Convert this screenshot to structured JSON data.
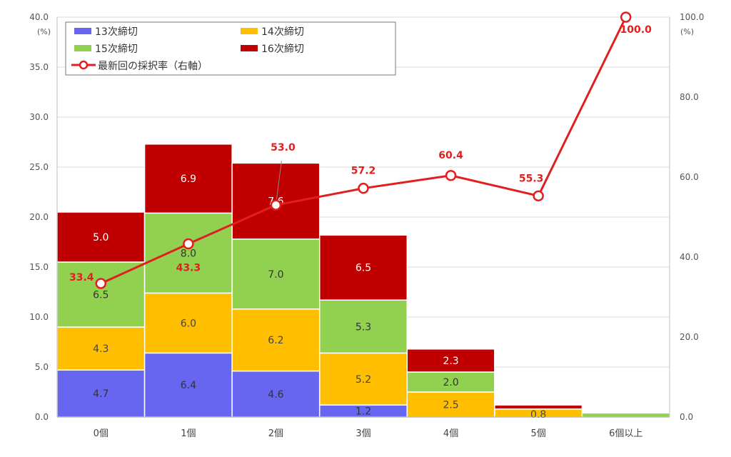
{
  "chart_data": {
    "type": "bar",
    "stacked": true,
    "categories": [
      "0個",
      "1個",
      "2個",
      "3個",
      "4個",
      "5個",
      "6個以上"
    ],
    "series": [
      {
        "name": "13次締切",
        "color": "#6666f0",
        "values": [
          4.7,
          6.4,
          4.6,
          1.2,
          0.0,
          0.0,
          0.0
        ],
        "labels": [
          "4.7",
          "6.4",
          "4.6",
          "1.2",
          "",
          "",
          ""
        ]
      },
      {
        "name": "14次締切",
        "color": "#ffbf00",
        "values": [
          4.3,
          6.0,
          6.2,
          5.2,
          2.5,
          0.8,
          0.0
        ],
        "labels": [
          "4.3",
          "6.0",
          "6.2",
          "5.2",
          "2.5",
          "0.8",
          ""
        ]
      },
      {
        "name": "15次締切",
        "color": "#92d050",
        "values": [
          6.5,
          8.0,
          7.0,
          5.3,
          2.0,
          0.0,
          0.4
        ],
        "labels": [
          "6.5",
          "8.0",
          "7.0",
          "5.3",
          "2.0",
          "",
          ""
        ]
      },
      {
        "name": "16次締切",
        "color": "#c00000",
        "values": [
          5.0,
          6.9,
          7.6,
          6.5,
          2.3,
          0.4,
          0.0
        ],
        "labels": [
          "5.0",
          "6.9",
          "7.6",
          "6.5",
          "2.3",
          "",
          ""
        ]
      }
    ],
    "line_series": {
      "name": "最新回の採択率（右軸）",
      "color": "#e02020",
      "values": [
        33.4,
        43.3,
        53.0,
        57.2,
        60.4,
        55.3,
        100.0
      ],
      "labels": [
        "33.4",
        "43.3",
        "53.0",
        "57.2",
        "60.4",
        "55.3",
        "100.0"
      ]
    },
    "y_left": {
      "min": 0,
      "max": 40,
      "ticks": [
        "0.0",
        "5.0",
        "10.0",
        "15.0",
        "20.0",
        "25.0",
        "30.0",
        "35.0",
        "40.0"
      ],
      "unit": "(%)"
    },
    "y_right": {
      "min": 0,
      "max": 100,
      "ticks": [
        "0.0",
        "20.0",
        "40.0",
        "60.0",
        "80.0",
        "100.0"
      ],
      "unit": "(%)"
    },
    "grid": true,
    "legend_position": "top-left"
  }
}
